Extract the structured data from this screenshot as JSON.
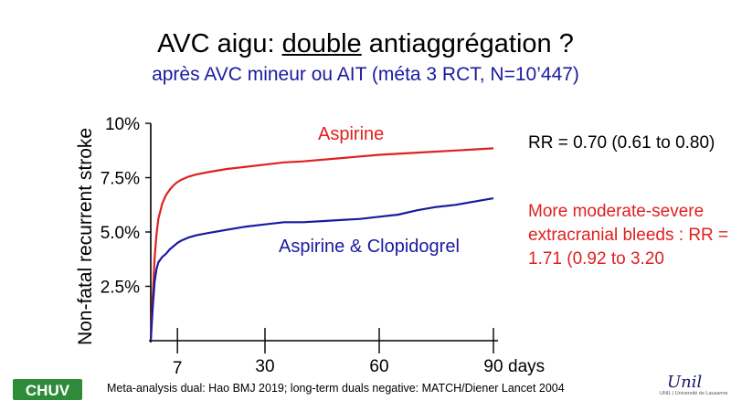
{
  "slide": {
    "title_before": "AVC aigu: ",
    "title_underlined": "double",
    "title_after": " antiaggrégation ?",
    "subtitle": "après AVC mineur ou AIT (méta 3 RCT, N=10’447)",
    "rr_text": "RR = 0.70 (0.61 to 0.80)",
    "bleeds_text": "More moderate-severe extracranial bleeds : RR = 1.71 (0.92 to 3.20",
    "footnote": "Meta-analysis dual: Hao BMJ 2019; long-term duals negative: MATCH/Diener Lancet 2004",
    "logo_left": "CHUV",
    "logo_right": "Unil",
    "logo_right_sub": "UNIL | Université de Lausanne"
  },
  "colors": {
    "title": "#000000",
    "subtitle": "#1a1aa0",
    "aspirin": "#e02020",
    "dual": "#1a1aa0",
    "logo_green": "#2e8b3a"
  },
  "chart_data": {
    "type": "line",
    "xlabel": "days",
    "ylabel": "Non-fatal recurrent stroke",
    "xlim": [
      0,
      90
    ],
    "ylim": [
      0,
      10
    ],
    "x_ticks": [
      7,
      30,
      60,
      90
    ],
    "x_tick_labels": [
      "7",
      "30",
      "60",
      "90"
    ],
    "y_ticks": [
      2.5,
      5.0,
      7.5,
      10
    ],
    "y_tick_labels": [
      "2.5%",
      "5.0%",
      "7.5%",
      "10%"
    ],
    "grid": false,
    "series": [
      {
        "name": "Aspirine",
        "color": "#e02020",
        "x": [
          0,
          0.5,
          1,
          1.5,
          2,
          3,
          4,
          5,
          6,
          7,
          8,
          10,
          12,
          15,
          20,
          25,
          30,
          35,
          40,
          50,
          60,
          70,
          80,
          90
        ],
        "y": [
          0,
          2.0,
          3.8,
          4.9,
          5.6,
          6.3,
          6.7,
          6.95,
          7.15,
          7.3,
          7.4,
          7.55,
          7.65,
          7.75,
          7.9,
          8.0,
          8.1,
          8.2,
          8.25,
          8.4,
          8.55,
          8.65,
          8.75,
          8.85
        ]
      },
      {
        "name": "Aspirine & Clopidogrel",
        "color": "#1a1aa0",
        "x": [
          0,
          0.5,
          1,
          1.5,
          2,
          3,
          4,
          5,
          6,
          7,
          8,
          10,
          12,
          15,
          20,
          25,
          30,
          35,
          40,
          45,
          50,
          55,
          60,
          65,
          70,
          75,
          80,
          85,
          90
        ],
        "y": [
          0,
          1.5,
          2.7,
          3.3,
          3.6,
          3.85,
          4.0,
          4.2,
          4.35,
          4.5,
          4.6,
          4.75,
          4.85,
          4.95,
          5.1,
          5.25,
          5.35,
          5.45,
          5.45,
          5.5,
          5.55,
          5.6,
          5.7,
          5.8,
          6.0,
          6.15,
          6.25,
          6.4,
          6.55
        ]
      }
    ]
  }
}
